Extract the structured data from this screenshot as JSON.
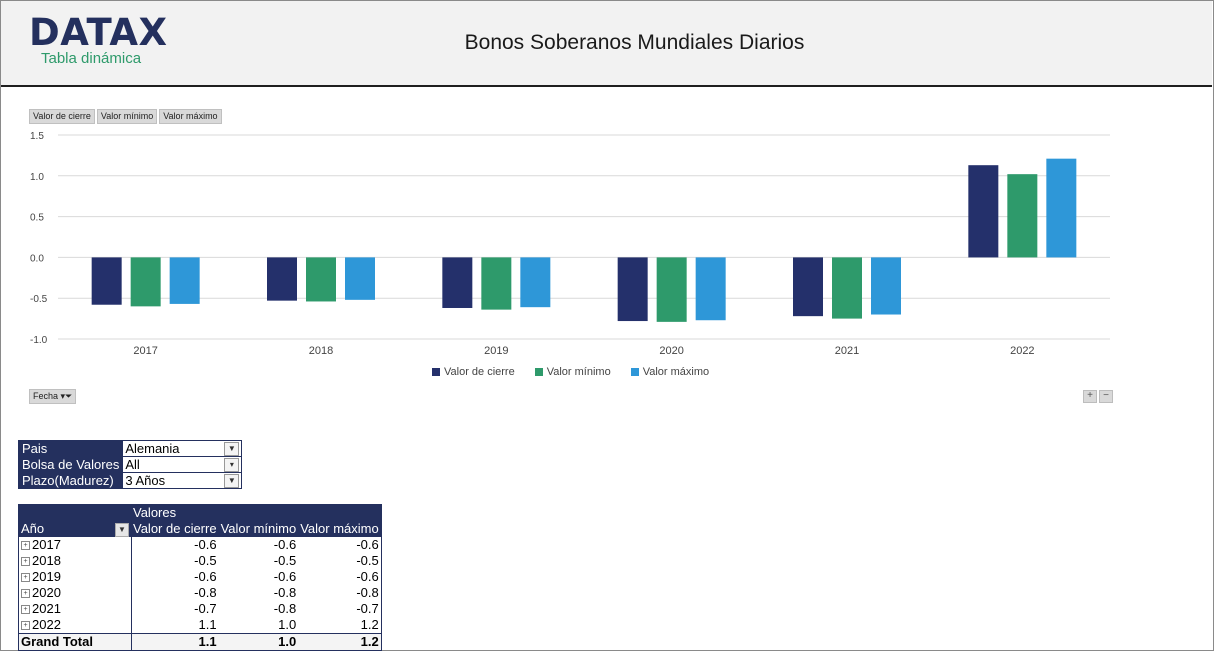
{
  "header": {
    "logo": "DATAX",
    "logo_sub": "Tabla dinámica",
    "title": "Bonos Soberanos Mundiales Diarios"
  },
  "field_buttons": [
    "Valor de cierre",
    "Valor mínimo",
    "Valor máximo"
  ],
  "fecha_button": "Fecha",
  "chart_data": {
    "type": "bar",
    "categories": [
      "2017",
      "2018",
      "2019",
      "2020",
      "2021",
      "2022"
    ],
    "series": [
      {
        "name": "Valor de cierre",
        "color": "#24306b",
        "values": [
          -0.58,
          -0.53,
          -0.62,
          -0.78,
          -0.72,
          1.13
        ]
      },
      {
        "name": "Valor mínimo",
        "color": "#2e9a6b",
        "values": [
          -0.6,
          -0.54,
          -0.64,
          -0.79,
          -0.75,
          1.02
        ]
      },
      {
        "name": "Valor máximo",
        "color": "#2e97d8",
        "values": [
          -0.57,
          -0.52,
          -0.61,
          -0.77,
          -0.7,
          1.21
        ]
      }
    ],
    "ylim": [
      -1.0,
      1.5
    ],
    "yticks": [
      "1.5",
      "1.0",
      "0.5",
      "0.0",
      "-0.5",
      "-1.0"
    ],
    "ytick_values": [
      1.5,
      1.0,
      0.5,
      0.0,
      -0.5,
      -1.0
    ],
    "grid": true,
    "legend": "bottom"
  },
  "filters": [
    {
      "label": "Pais",
      "value": "Alemania",
      "icon": "filter-icon"
    },
    {
      "label": "Bolsa de Valores",
      "value": "All",
      "icon": "dropdown-icon"
    },
    {
      "label": "Plazo(Madurez)",
      "value": "3 Años",
      "icon": "filter-icon"
    }
  ],
  "pivot": {
    "values_header": "Valores",
    "row_header": "Año",
    "columns": [
      "Valor de cierre",
      "Valor mínimo",
      "Valor máximo"
    ],
    "rows": [
      {
        "year": "2017",
        "values": [
          "-0.6",
          "-0.6",
          "-0.6"
        ]
      },
      {
        "year": "2018",
        "values": [
          "-0.5",
          "-0.5",
          "-0.5"
        ]
      },
      {
        "year": "2019",
        "values": [
          "-0.6",
          "-0.6",
          "-0.6"
        ]
      },
      {
        "year": "2020",
        "values": [
          "-0.8",
          "-0.8",
          "-0.8"
        ]
      },
      {
        "year": "2021",
        "values": [
          "-0.7",
          "-0.8",
          "-0.7"
        ]
      },
      {
        "year": "2022",
        "values": [
          "1.1",
          "1.0",
          "1.2"
        ]
      }
    ],
    "grand_total_label": "Grand Total",
    "grand_total": [
      "1.1",
      "1.0",
      "1.2"
    ]
  }
}
